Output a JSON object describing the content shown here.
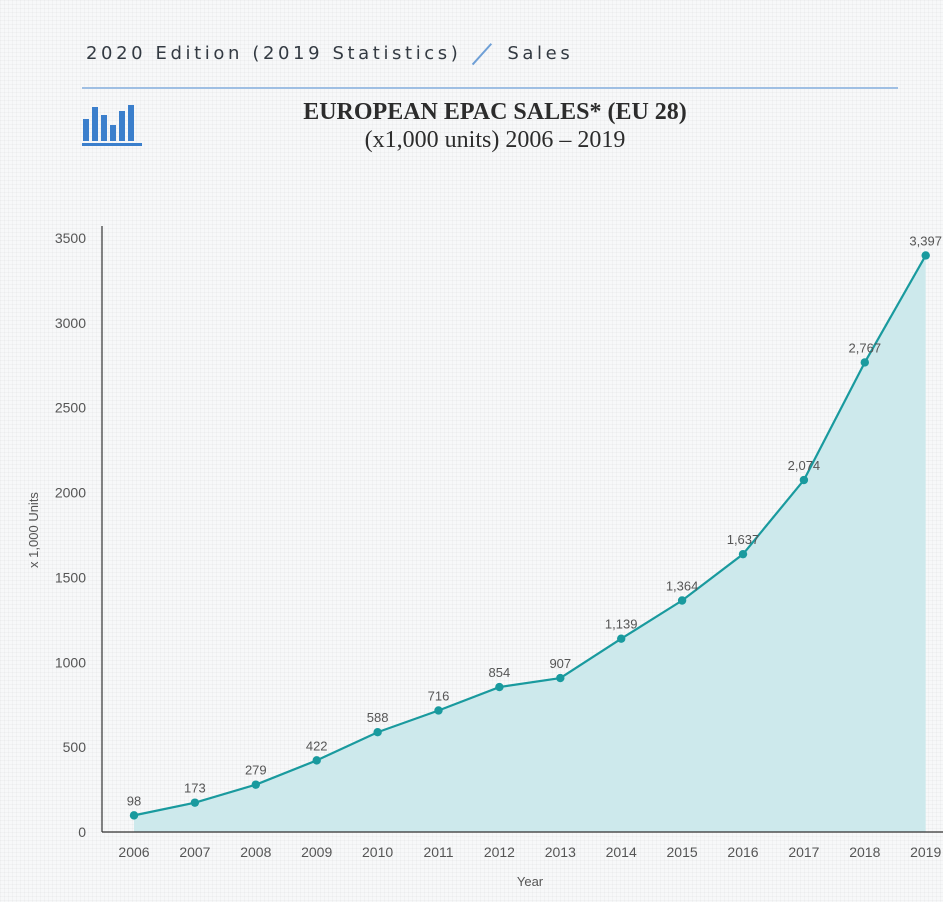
{
  "header": {
    "edition": "2020 Edition (2019 Statistics)",
    "section": "Sales"
  },
  "colors": {
    "line": "#199a9e",
    "fill": "#cde9ec",
    "accent": "#3b7fcc",
    "axis": "#333333",
    "label": "#555555"
  },
  "icons": {
    "logo": "bar-chart-icon"
  },
  "chart_data": {
    "type": "area",
    "title": "EUROPEAN EPAC SALES* (EU 28)",
    "subtitle": "(x1,000 units) 2006 – 2019",
    "xlabel": "Year",
    "ylabel": "x 1,000 Units",
    "ylim": [
      0,
      3500
    ],
    "yticks": [
      0,
      500,
      1000,
      1500,
      2000,
      2500,
      3000,
      3500
    ],
    "categories": [
      "2006",
      "2007",
      "2008",
      "2009",
      "2010",
      "2011",
      "2012",
      "2013",
      "2014",
      "2015",
      "2016",
      "2017",
      "2018",
      "2019"
    ],
    "values": [
      98,
      173,
      279,
      422,
      588,
      716,
      854,
      907,
      1139,
      1364,
      1637,
      2074,
      2767,
      3397
    ],
    "data_labels": [
      "98",
      "173",
      "279",
      "422",
      "588",
      "716",
      "854",
      "907",
      "1,139",
      "1,364",
      "1,637",
      "2,074",
      "2,767",
      "3,397"
    ],
    "grid": false
  }
}
